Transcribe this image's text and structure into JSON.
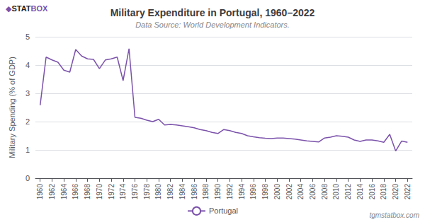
{
  "chart_data": {
    "type": "line",
    "title": "Military Expenditure in Portugal, 1960–2022",
    "subtitle": "Data Source: World Development Indicators.",
    "ylabel": "Military Spending (% of GDP)",
    "logo": [
      {
        "text": "◆",
        "color": "#7b52ab"
      },
      {
        "text": "STAT",
        "color": "#222222"
      },
      {
        "text": "BOX",
        "color": "#7b52ab"
      }
    ],
    "watermark": "tgmstatbox.com",
    "x": [
      1960,
      1961,
      1962,
      1963,
      1964,
      1965,
      1966,
      1967,
      1968,
      1969,
      1970,
      1971,
      1972,
      1973,
      1974,
      1975,
      1976,
      1977,
      1978,
      1979,
      1980,
      1981,
      1982,
      1983,
      1984,
      1985,
      1986,
      1987,
      1988,
      1989,
      1990,
      1991,
      1992,
      1993,
      1994,
      1995,
      1996,
      1997,
      1998,
      1999,
      2000,
      2001,
      2002,
      2003,
      2004,
      2005,
      2006,
      2007,
      2008,
      2009,
      2010,
      2011,
      2012,
      2013,
      2014,
      2015,
      2016,
      2017,
      2018,
      2019,
      2020,
      2021,
      2022
    ],
    "series": [
      {
        "name": "Portugal",
        "color": "#7b52ab",
        "values": [
          2.58,
          4.28,
          4.18,
          4.1,
          3.82,
          3.75,
          4.55,
          4.32,
          4.22,
          4.2,
          3.87,
          4.18,
          4.22,
          4.28,
          3.45,
          4.58,
          2.15,
          2.12,
          2.05,
          2.0,
          2.08,
          1.88,
          1.9,
          1.88,
          1.85,
          1.82,
          1.78,
          1.72,
          1.68,
          1.62,
          1.58,
          1.72,
          1.68,
          1.62,
          1.58,
          1.5,
          1.46,
          1.43,
          1.41,
          1.4,
          1.42,
          1.42,
          1.4,
          1.38,
          1.35,
          1.32,
          1.3,
          1.28,
          1.42,
          1.45,
          1.5,
          1.48,
          1.45,
          1.35,
          1.3,
          1.35,
          1.35,
          1.32,
          1.27,
          1.55,
          0.96,
          1.31,
          1.27
        ]
      }
    ],
    "xlim": [
      1959.2,
      2022.8
    ],
    "xticks": [
      1960,
      1962,
      1964,
      1966,
      1968,
      1970,
      1972,
      1974,
      1976,
      1978,
      1980,
      1982,
      1984,
      1986,
      1988,
      1990,
      1992,
      1994,
      1996,
      1998,
      2000,
      2002,
      2004,
      2006,
      2008,
      2010,
      2012,
      2014,
      2016,
      2018,
      2020,
      2022
    ],
    "ylim": [
      0,
      5
    ],
    "yticks": [
      0,
      1,
      2,
      3,
      4,
      5
    ],
    "grid": true,
    "legend": "bottom"
  }
}
